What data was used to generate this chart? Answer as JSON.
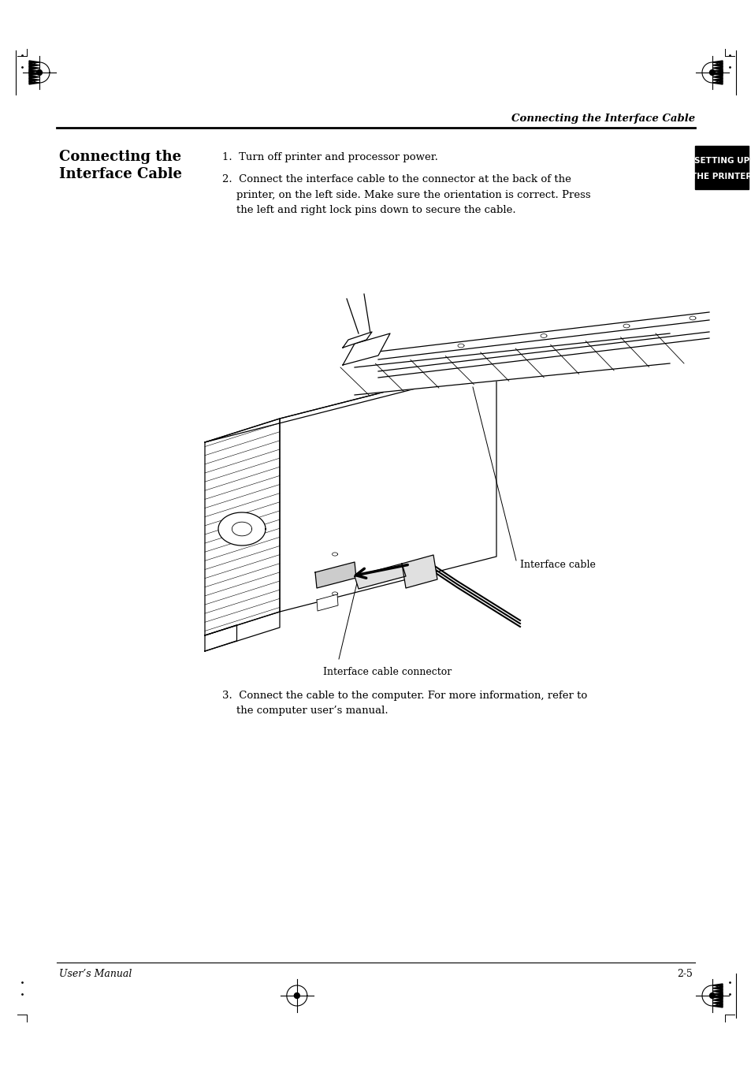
{
  "page_width": 9.54,
  "page_height": 13.51,
  "bg_color": "#ffffff",
  "header_text": "Connecting the Interface Cable",
  "section_title_line1": "Connecting the",
  "section_title_line2": "Interface Cable",
  "sidebar_text_line1": "SETTING UP",
  "sidebar_text_line2": "THE PRINTER",
  "step1_text": "1.  Turn off printer and processor power.",
  "step2_line1": "2.  Connect the interface cable to the connector at the back of the",
  "step2_line2": "printer, on the left side. Make sure the orientation is correct. Press",
  "step2_line3": "the left and right lock pins down to secure the cable.",
  "label_interface_cable": "Interface cable",
  "label_connector": "Interface cable connector",
  "step3_line1": "3.  Connect the cable to the computer. For more information, refer to",
  "step3_line2": "the computer user’s manual.",
  "footer_left": "User’s Manual",
  "footer_right": "2-5",
  "body_font_size": 9.5,
  "section_title_font_size": 13.0,
  "footer_font_size": 9.0,
  "sidebar_font_size": 7.5,
  "header_font_size": 9.5
}
